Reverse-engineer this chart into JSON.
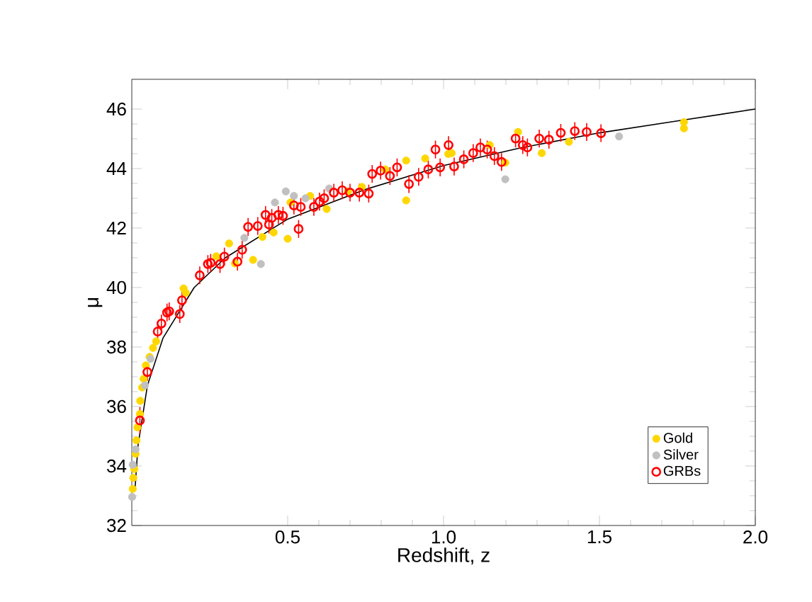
{
  "chart_data": {
    "type": "scatter",
    "xlabel": "Redshift, z",
    "ylabel": "μ",
    "xlim": [
      0,
      2.0
    ],
    "ylim": [
      32,
      47
    ],
    "xticks": [
      0.5,
      {
        "value": 1.0,
        "label": "1.0"
      },
      1.5,
      {
        "value": 2.0,
        "label": "2.0"
      }
    ],
    "yticks": [
      32,
      34,
      36,
      38,
      40,
      42,
      44,
      46
    ],
    "legend": "bottom right",
    "series": [
      {
        "type": "line",
        "color": "#000000",
        "marker": "none",
        "x": [
          0.01,
          0.02,
          0.05,
          0.1,
          0.2,
          0.3,
          0.5,
          0.75,
          1.0,
          1.25,
          1.5,
          1.75,
          2.0
        ],
        "values": [
          33.2,
          34.7,
          36.7,
          38.3,
          40.0,
          41.0,
          42.3,
          43.3,
          44.1,
          44.7,
          45.2,
          45.6,
          46.0
        ]
      },
      {
        "name": "Gold",
        "color": "#ffd700",
        "marker": "circle",
        "x": [
          0.003,
          0.005,
          0.008,
          0.012,
          0.015,
          0.018,
          0.026,
          0.027,
          0.033,
          0.038,
          0.045,
          0.057,
          0.068,
          0.078,
          0.166,
          0.173,
          0.271,
          0.312,
          0.331,
          0.389,
          0.419,
          0.455,
          0.5,
          0.509,
          0.572,
          0.625,
          0.693,
          0.738,
          0.813,
          0.88,
          0.88,
          0.941,
          1.015,
          1.026,
          1.148,
          1.198,
          1.239,
          1.315,
          1.402,
          1.771,
          1.771
        ],
        "values": [
          33.23,
          33.6,
          33.9,
          34.41,
          34.86,
          35.3,
          35.75,
          36.19,
          36.64,
          36.93,
          37.38,
          37.67,
          37.97,
          38.19,
          39.97,
          39.82,
          41.05,
          41.48,
          40.81,
          40.93,
          41.7,
          41.85,
          41.64,
          42.86,
          43.08,
          42.64,
          43.23,
          43.38,
          43.97,
          44.27,
          42.93,
          44.34,
          44.49,
          44.52,
          44.79,
          44.2,
          45.23,
          44.52,
          44.9,
          45.56,
          45.35
        ]
      },
      {
        "name": "Silver",
        "color": "#c0c0c0",
        "marker": "circle",
        "x": [
          0.001,
          0.003,
          0.012,
          0.042,
          0.06,
          0.361,
          0.414,
          0.459,
          0.494,
          0.52,
          0.557,
          0.633,
          1.198,
          1.563
        ],
        "values": [
          32.96,
          34.04,
          34.56,
          36.71,
          37.6,
          41.67,
          40.79,
          42.86,
          43.23,
          43.08,
          43.0,
          43.33,
          43.64,
          45.08
        ]
      },
      {
        "name": "GRBs",
        "color": "#ff0000",
        "marker": "circle",
        "x": [
          0.026,
          0.05,
          0.083,
          0.095,
          0.113,
          0.12,
          0.154,
          0.161,
          0.218,
          0.244,
          0.253,
          0.283,
          0.297,
          0.339,
          0.354,
          0.373,
          0.404,
          0.429,
          0.44,
          0.449,
          0.47,
          0.485,
          0.52,
          0.535,
          0.542,
          0.584,
          0.602,
          0.617,
          0.648,
          0.675,
          0.7,
          0.73,
          0.76,
          0.771,
          0.798,
          0.828,
          0.851,
          0.889,
          0.92,
          0.951,
          0.974,
          0.989,
          1.016,
          1.034,
          1.065,
          1.095,
          1.118,
          1.14,
          1.163,
          1.186,
          1.231,
          1.254,
          1.269,
          1.307,
          1.338,
          1.376,
          1.421,
          1.459,
          1.505
        ],
        "values": [
          35.53,
          37.16,
          38.52,
          38.79,
          39.16,
          39.2,
          39.11,
          39.57,
          40.41,
          40.79,
          40.83,
          40.79,
          41.04,
          40.87,
          41.27,
          42.04,
          42.07,
          42.44,
          42.12,
          42.34,
          42.44,
          42.41,
          42.76,
          41.97,
          42.71,
          42.71,
          42.89,
          43.0,
          43.19,
          43.27,
          43.19,
          43.19,
          43.16,
          43.82,
          43.93,
          43.75,
          44.04,
          43.48,
          43.72,
          43.97,
          44.64,
          44.04,
          44.79,
          44.07,
          44.31,
          44.52,
          44.71,
          44.64,
          44.42,
          44.22,
          45.01,
          44.79,
          44.71,
          45.01,
          44.97,
          45.2,
          45.26,
          45.23,
          45.19
        ],
        "errors": [
          0.45,
          0.3,
          0.3,
          0.3,
          0.3,
          0.3,
          0.3,
          0.3,
          0.3,
          0.3,
          0.3,
          0.3,
          0.3,
          0.3,
          0.3,
          0.3,
          0.3,
          0.3,
          0.3,
          0.3,
          0.3,
          0.3,
          0.3,
          0.3,
          0.3,
          0.3,
          0.3,
          0.3,
          0.3,
          0.3,
          0.3,
          0.3,
          0.3,
          0.3,
          0.3,
          0.3,
          0.3,
          0.3,
          0.3,
          0.3,
          0.3,
          0.3,
          0.3,
          0.3,
          0.3,
          0.3,
          0.3,
          0.3,
          0.3,
          0.3,
          0.3,
          0.3,
          0.3,
          0.3,
          0.3,
          0.3,
          0.3,
          0.3,
          0.3
        ]
      }
    ]
  }
}
